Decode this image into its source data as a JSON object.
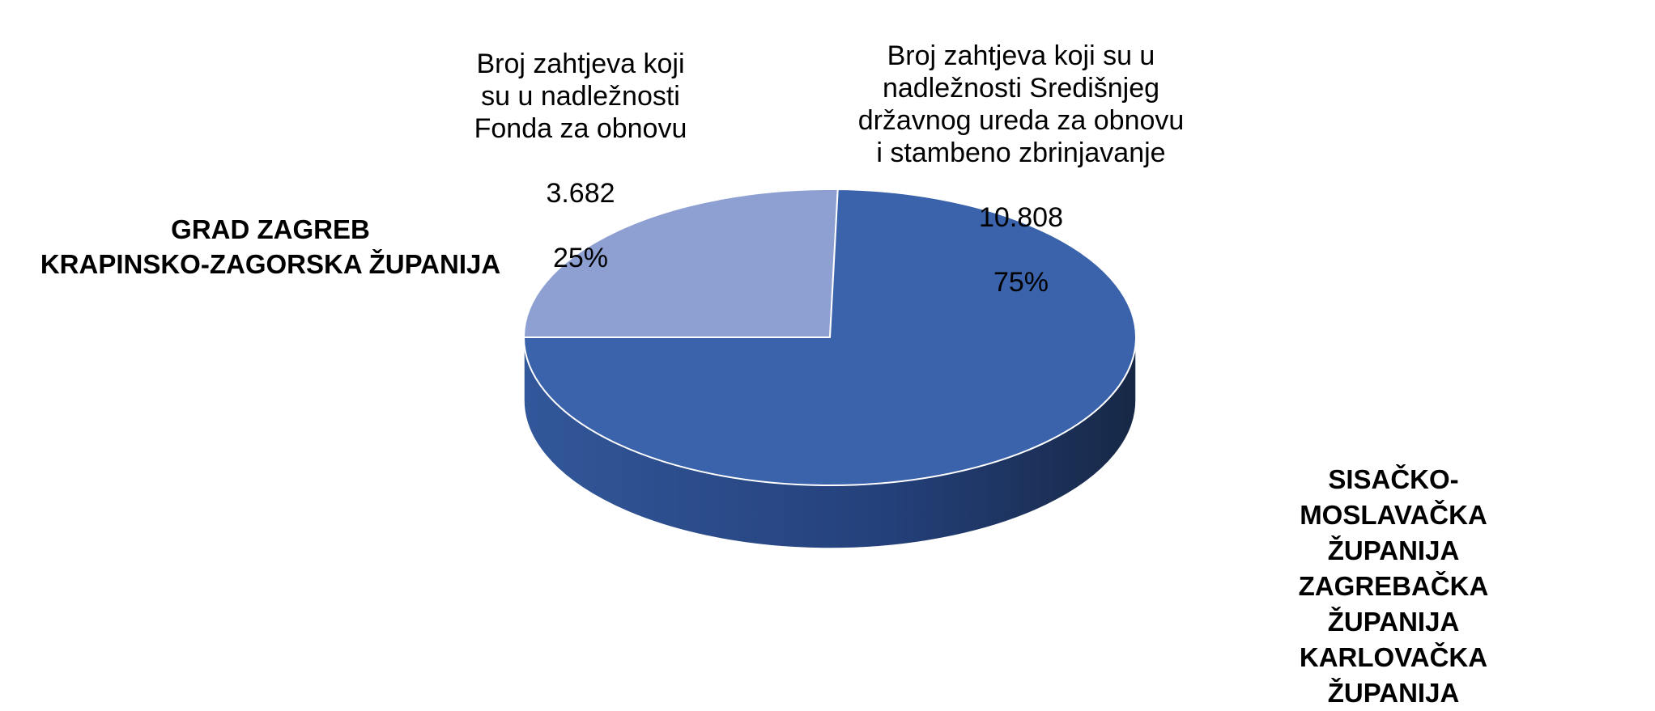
{
  "chart_data": {
    "type": "pie3d",
    "categories": [
      "Broj zahtjeva koji\nsu u nadležnosti\nFonda za obnovu",
      "Broj zahtjeva koji su u\nnadležnosti Središnjeg\ndržavnog ureda za obnovu\ni stambeno zbrinjavanje"
    ],
    "values": [
      3682,
      10808
    ],
    "value_labels": [
      "3.682",
      "10.808"
    ],
    "percent_labels": [
      "25%",
      "75%"
    ],
    "colors": [
      "#8EA0D2",
      "#3B63AB"
    ],
    "annotations": [
      {
        "text": "GRAD ZAGREB\nKRAPINSKO-ZAGORSKA ŽUPANIJA"
      },
      {
        "text": "SISAČKO-MOSLAVAČKA ŽUPANIJA\nZAGREBAČKA ŽUPANIJA\nKARLOVAČKA ŽUPANIJA"
      }
    ]
  }
}
